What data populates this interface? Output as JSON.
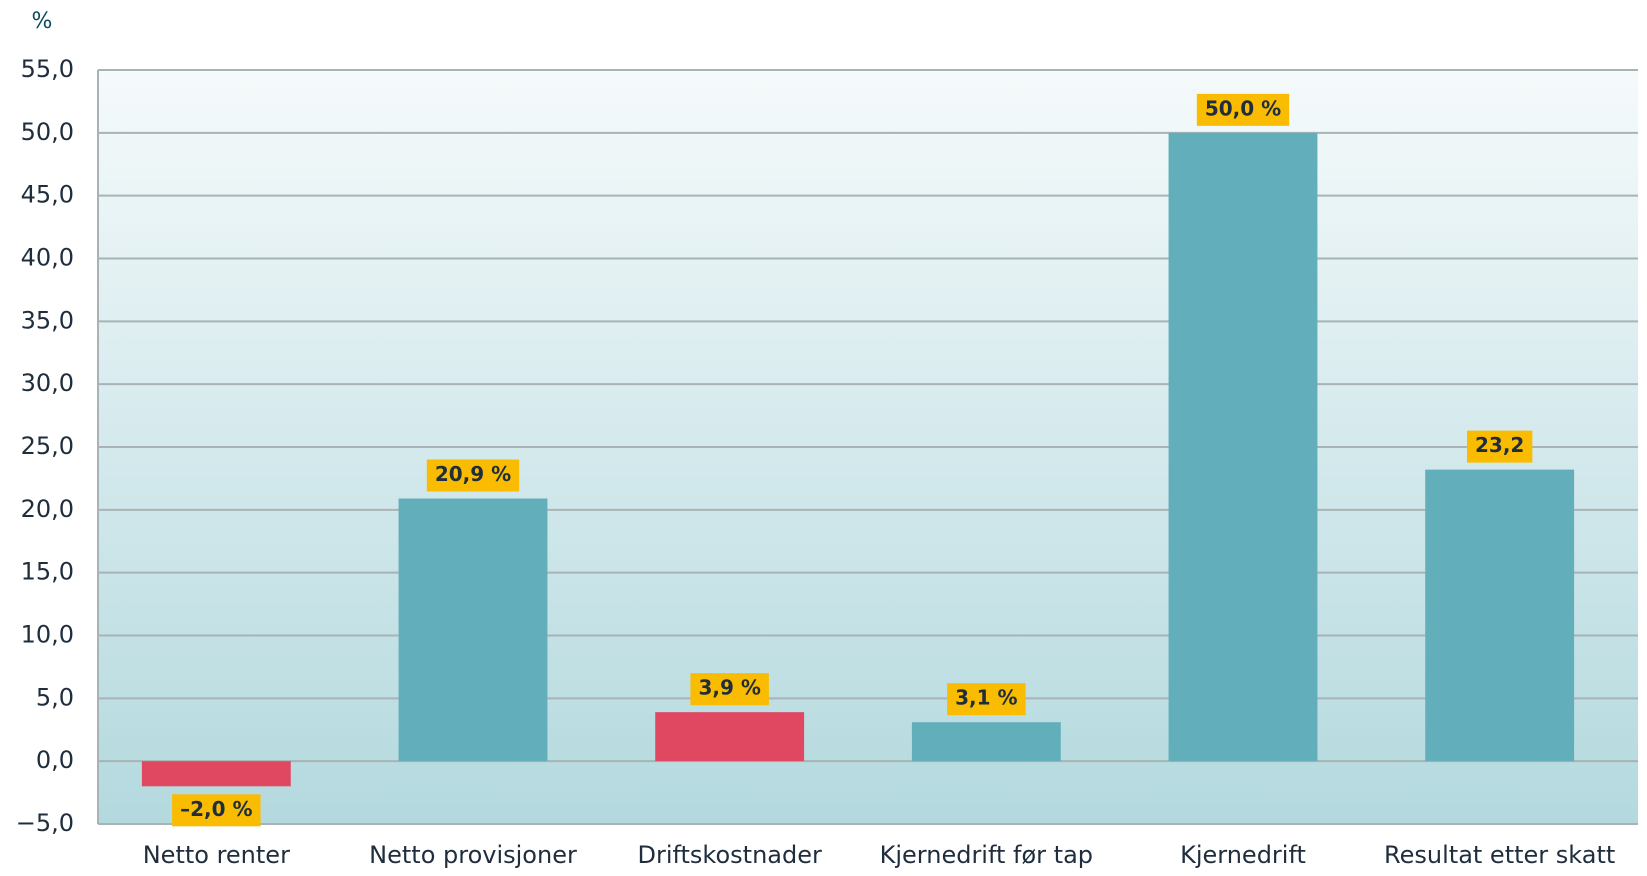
{
  "chart_data": {
    "type": "bar",
    "y_label": "%",
    "categories": [
      "Netto renter",
      "Netto provisjoner",
      "Driftskostnader",
      "Kjernedrift før tap",
      "Kjernedrift",
      "Resultat etter skatt"
    ],
    "values": [
      -2.0,
      20.9,
      3.9,
      3.1,
      50.0,
      23.2
    ],
    "value_labels": [
      "–2,0 %",
      "20,9 %",
      "3,9 %",
      "3,1 %",
      "50,0 %",
      "23,2"
    ],
    "colors": [
      "#e04862",
      "#62afbb",
      "#e04862",
      "#62afbb",
      "#62afbb",
      "#62afbb"
    ],
    "label_box_color": "#f9bc00",
    "ylim": [
      -5,
      55
    ],
    "yticks": [
      {
        "value": -5,
        "label": "−5,0"
      },
      {
        "value": 0,
        "label": "0,0"
      },
      {
        "value": 5,
        "label": "5,0"
      },
      {
        "value": 10,
        "label": "10,0"
      },
      {
        "value": 15,
        "label": "15,0"
      },
      {
        "value": 20,
        "label": "20,0"
      },
      {
        "value": 25,
        "label": "25,0"
      },
      {
        "value": 30,
        "label": "30,0"
      },
      {
        "value": 35,
        "label": "35,0"
      },
      {
        "value": 40,
        "label": "40,0"
      },
      {
        "value": 45,
        "label": "45,0"
      },
      {
        "value": 50,
        "label": "50,0"
      },
      {
        "value": 55,
        "label": "55,0"
      }
    ],
    "grid": true
  }
}
